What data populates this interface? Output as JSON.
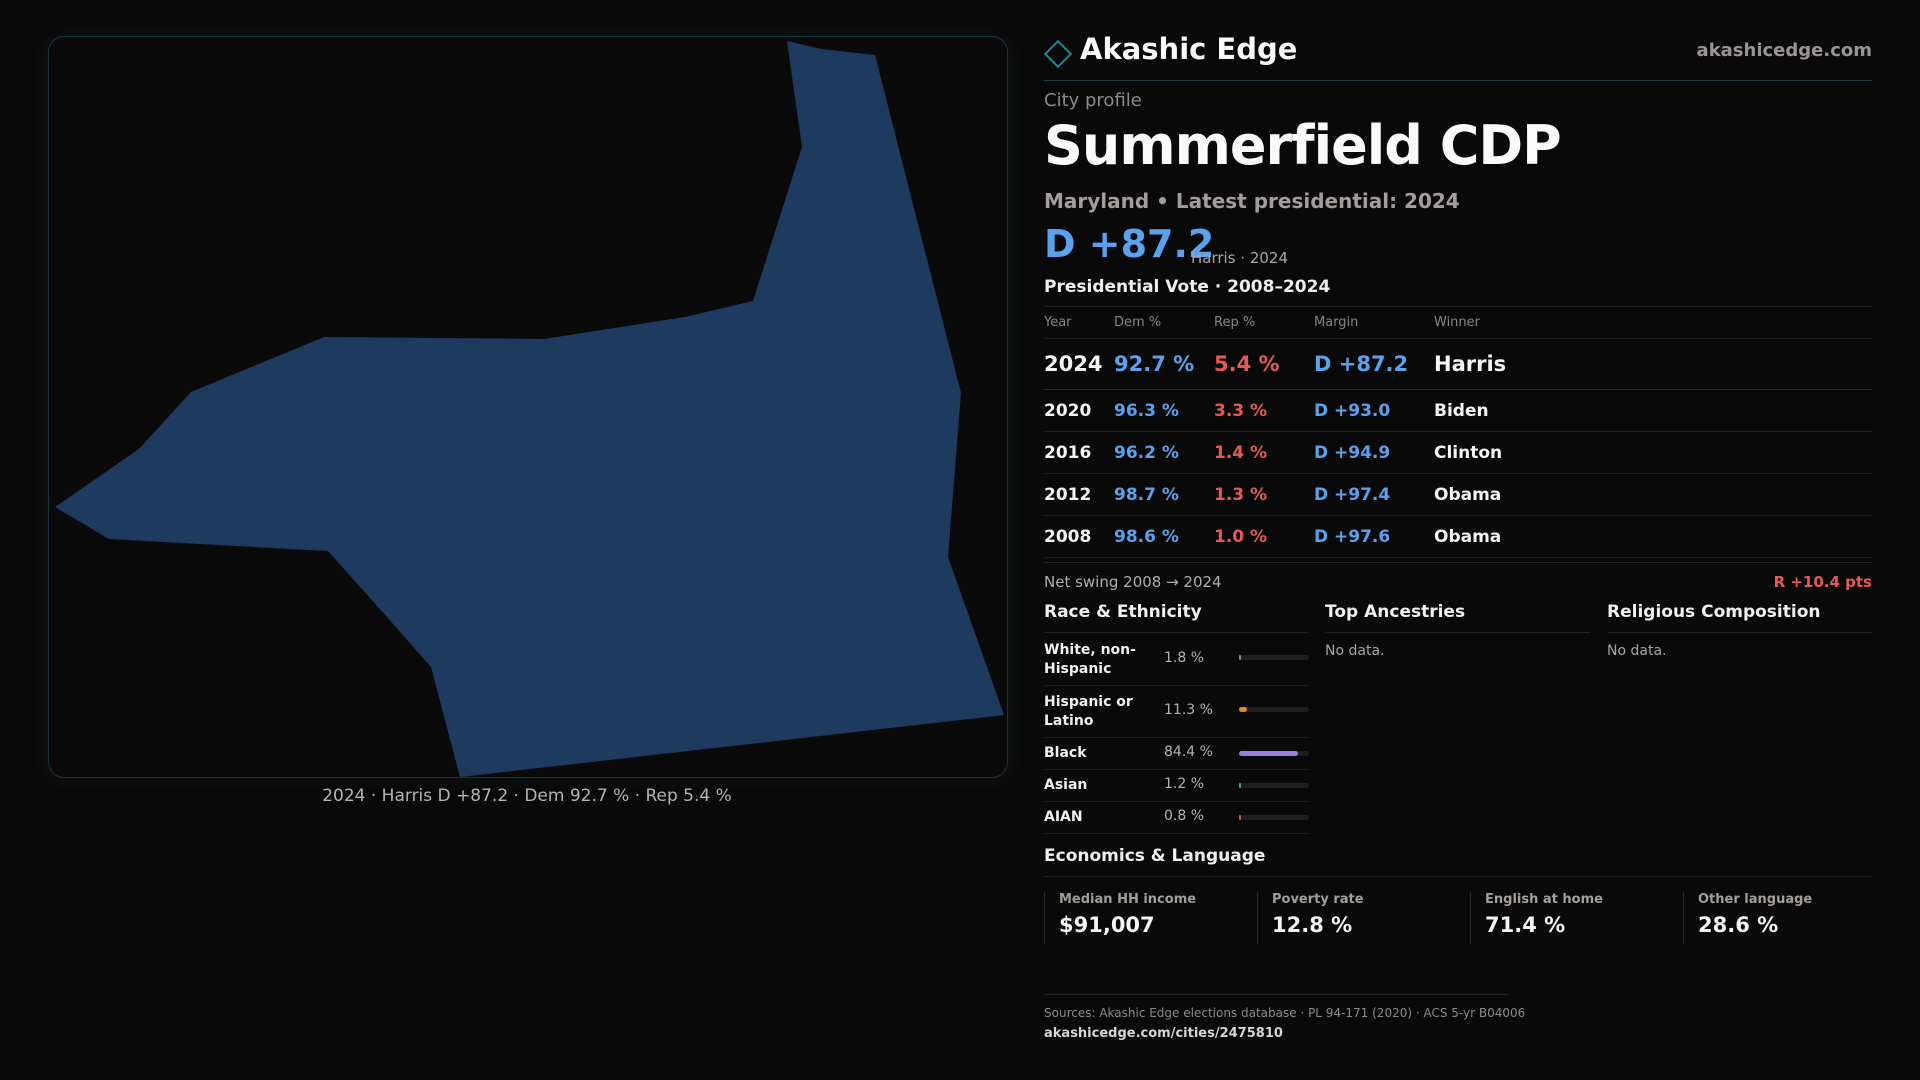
{
  "brand": {
    "name": "Akashic Edge",
    "url": "akashicedge.com",
    "logo_icon": "diamond-icon"
  },
  "profile": {
    "eyebrow": "City profile",
    "title": "Summerfield CDP",
    "subtitle": "Maryland • Latest presidential: 2024",
    "headline_margin": "D +87.2",
    "headline_note": "Harris · 2024"
  },
  "map": {
    "caption": "2024 · Harris D +87.2 · Dem 92.7 % · Rep 5.4 %",
    "fill_color": "#1f3a5f"
  },
  "vote": {
    "section_title": "Presidential Vote · 2008–2024",
    "headers": {
      "year": "Year",
      "dem": "Dem %",
      "rep": "Rep %",
      "margin": "Margin",
      "winner": "Winner"
    },
    "rows": [
      {
        "year": "2024",
        "dem": "92.7 %",
        "rep": "5.4 %",
        "margin": "D +87.2",
        "winner": "Harris"
      },
      {
        "year": "2020",
        "dem": "96.3 %",
        "rep": "3.3 %",
        "margin": "D +93.0",
        "winner": "Biden"
      },
      {
        "year": "2016",
        "dem": "96.2 %",
        "rep": "1.4 %",
        "margin": "D +94.9",
        "winner": "Clinton"
      },
      {
        "year": "2012",
        "dem": "98.7 %",
        "rep": "1.3 %",
        "margin": "D +97.4",
        "winner": "Obama"
      },
      {
        "year": "2008",
        "dem": "98.6 %",
        "rep": "1.0 %",
        "margin": "D +97.6",
        "winner": "Obama"
      }
    ],
    "swing_label": "Net swing 2008 → 2024",
    "swing_value": "R +10.4 pts"
  },
  "race": {
    "title": "Race & Ethnicity",
    "items": [
      {
        "label": "White, non-Hispanic",
        "pct": "1.8 %",
        "value": 1.8,
        "color": "#8d8d8d"
      },
      {
        "label": "Hispanic or Latino",
        "pct": "11.3 %",
        "value": 11.3,
        "color": "#e08a2c"
      },
      {
        "label": "Black",
        "pct": "84.4 %",
        "value": 84.4,
        "color": "#9b7fe0"
      },
      {
        "label": "Asian",
        "pct": "1.2 %",
        "value": 1.2,
        "color": "#3aa58f"
      },
      {
        "label": "AIAN",
        "pct": "0.8 %",
        "value": 0.8,
        "color": "#c0603a"
      }
    ]
  },
  "ancestries": {
    "title": "Top Ancestries",
    "empty": "No data."
  },
  "religion": {
    "title": "Religious Composition",
    "empty": "No data."
  },
  "economics": {
    "title": "Economics & Language",
    "stats": [
      {
        "label": "Median HH income",
        "value": "$91,007"
      },
      {
        "label": "Poverty rate",
        "value": "12.8 %"
      },
      {
        "label": "English at home",
        "value": "71.4 %"
      },
      {
        "label": "Other language",
        "value": "28.6 %"
      }
    ]
  },
  "footer": {
    "sources": "Sources: Akashic Edge elections database · PL 94-171 (2020) · ACS 5-yr B04006",
    "url": "akashicedge.com/cities/2475810"
  }
}
